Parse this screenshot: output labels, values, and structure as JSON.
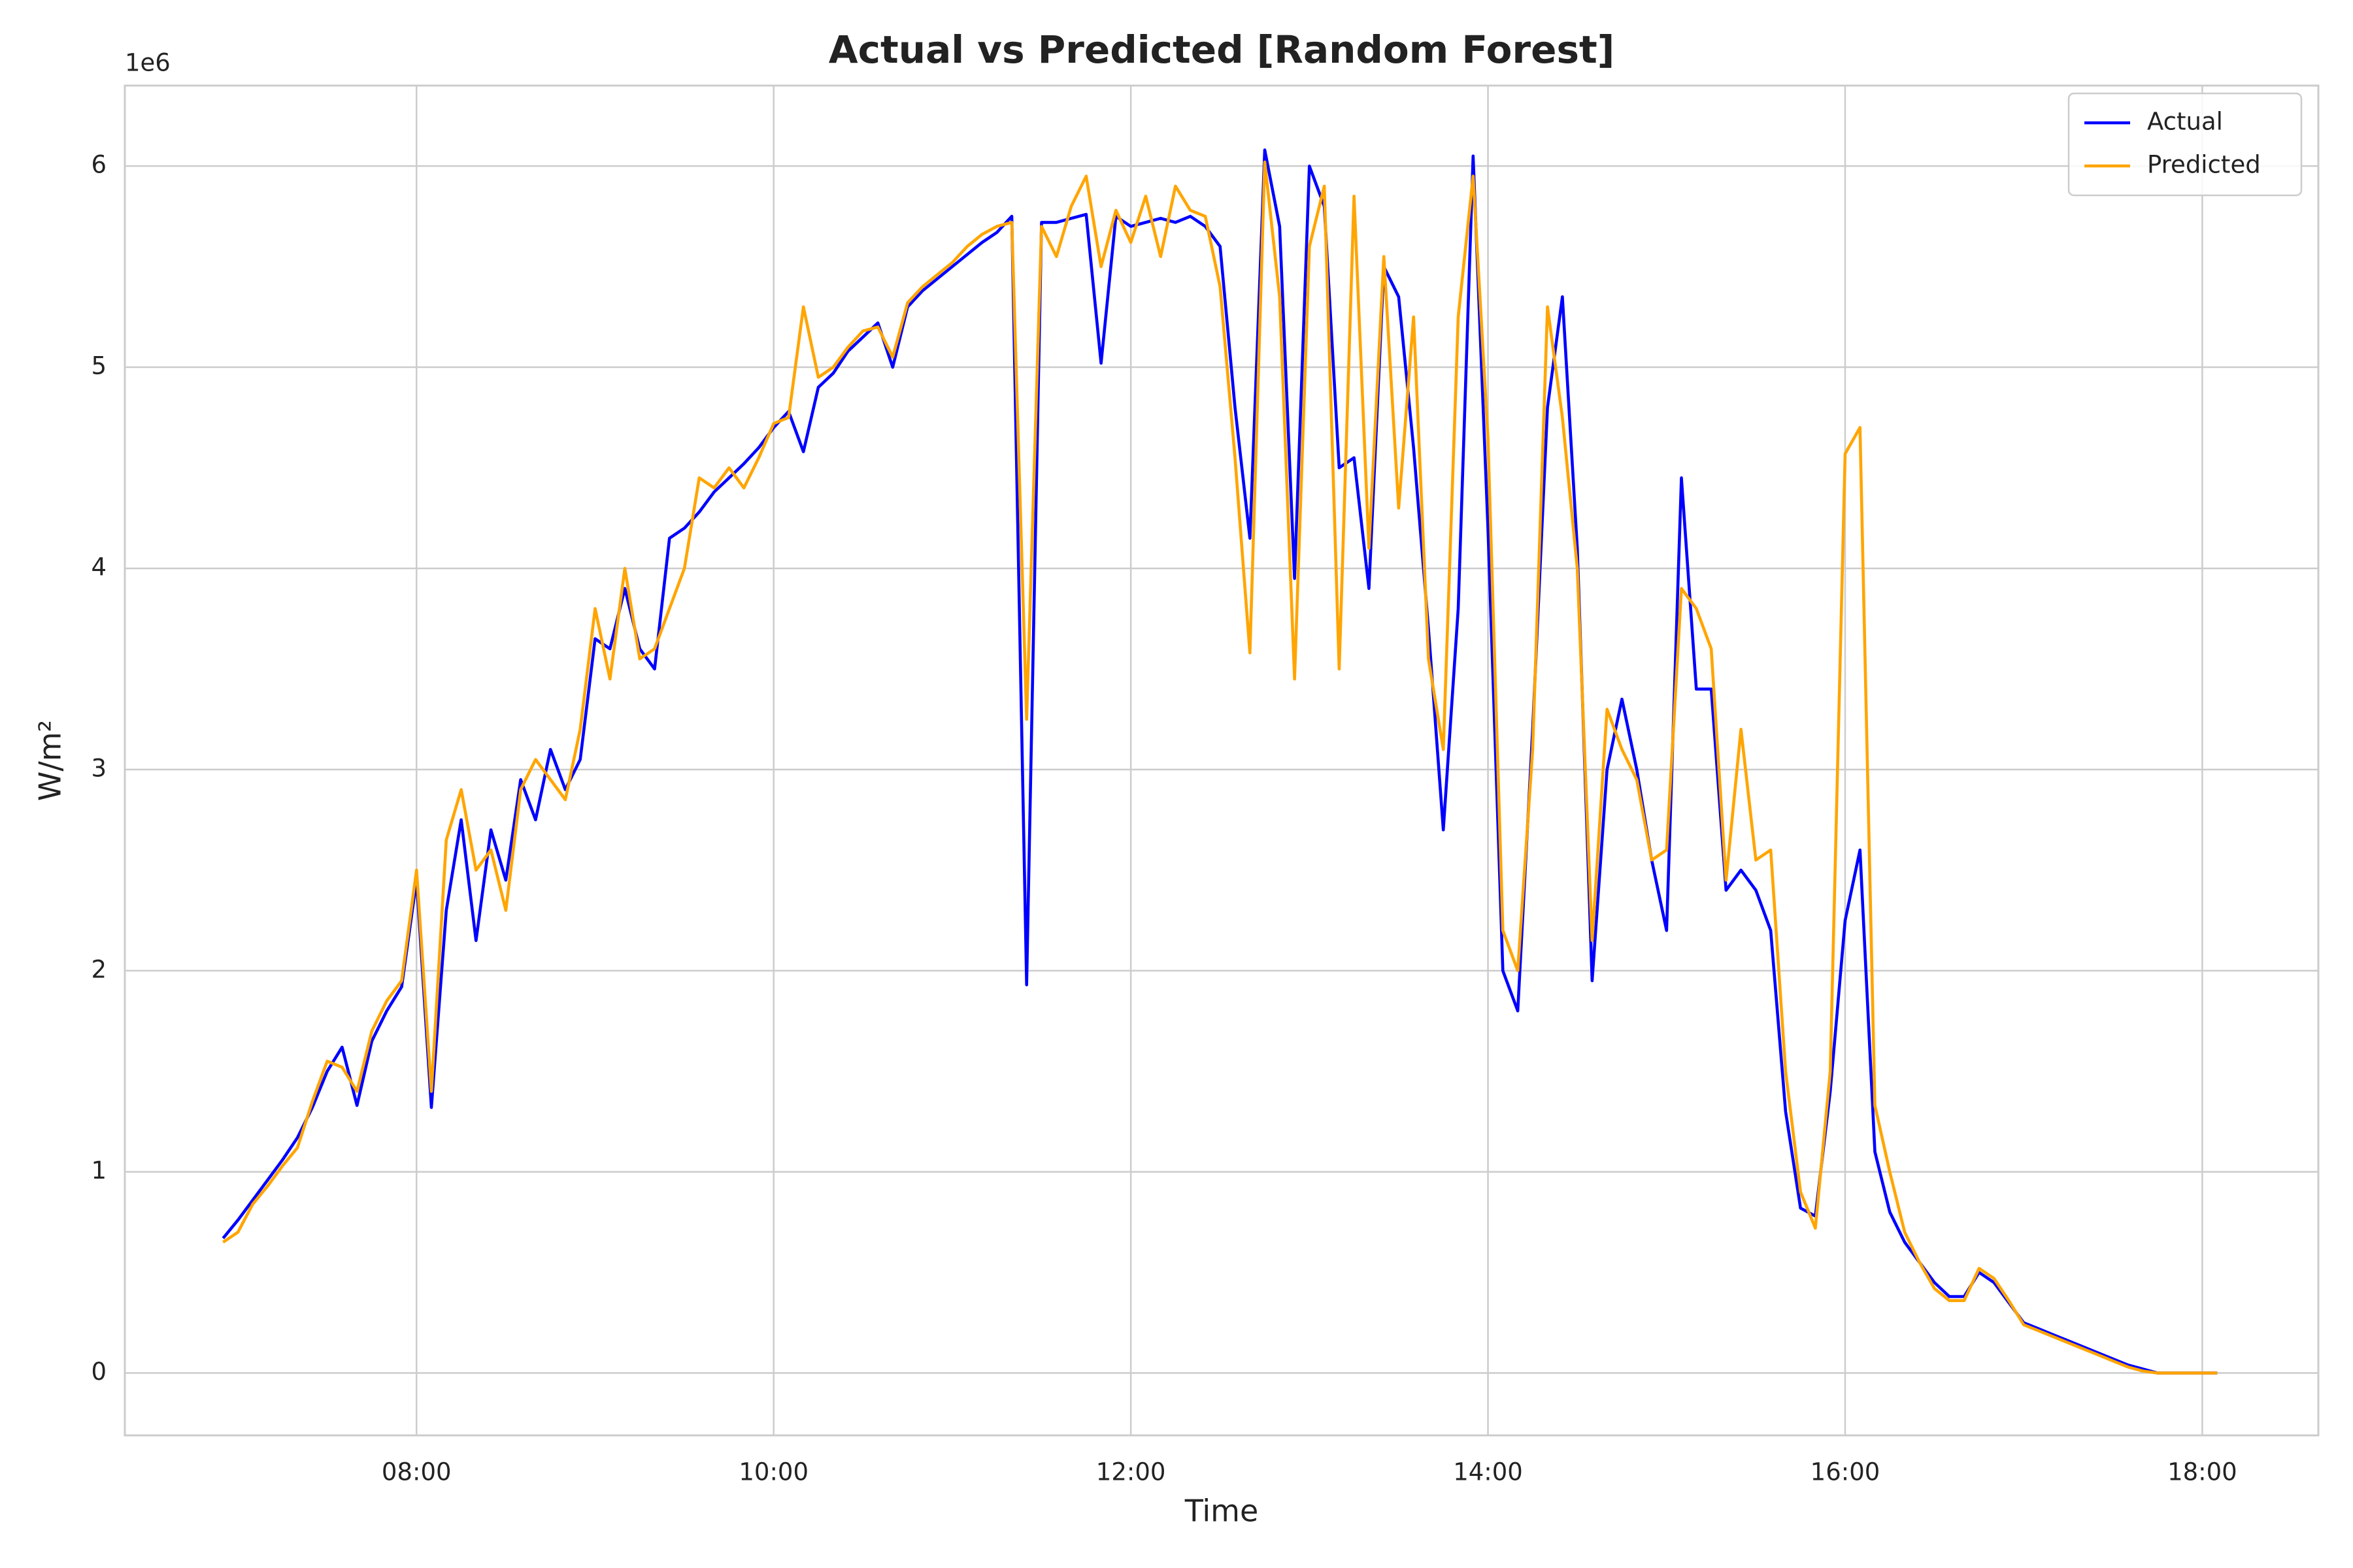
{
  "chart_data": {
    "type": "line",
    "title": "Actual vs Predicted [Random Forest]",
    "xlabel": "Time",
    "ylabel": "W/m²",
    "y_offset_label": "1e6",
    "x": [
      "06:55",
      "07:00",
      "07:05",
      "07:10",
      "07:15",
      "07:20",
      "07:25",
      "07:30",
      "07:35",
      "07:40",
      "07:45",
      "07:50",
      "07:55",
      "08:00",
      "08:05",
      "08:10",
      "08:15",
      "08:20",
      "08:25",
      "08:30",
      "08:35",
      "08:40",
      "08:45",
      "08:50",
      "08:55",
      "09:00",
      "09:05",
      "09:10",
      "09:15",
      "09:20",
      "09:25",
      "09:30",
      "09:35",
      "09:40",
      "09:45",
      "09:50",
      "09:55",
      "10:00",
      "10:05",
      "10:10",
      "10:15",
      "10:20",
      "10:25",
      "10:30",
      "10:35",
      "10:40",
      "10:45",
      "10:50",
      "10:55",
      "11:00",
      "11:05",
      "11:10",
      "11:15",
      "11:20",
      "11:25",
      "11:30",
      "11:35",
      "11:40",
      "11:45",
      "11:50",
      "11:55",
      "12:00",
      "12:05",
      "12:10",
      "12:15",
      "12:20",
      "12:25",
      "12:30",
      "12:35",
      "12:40",
      "12:45",
      "12:50",
      "12:55",
      "13:00",
      "13:05",
      "13:10",
      "13:15",
      "13:20",
      "13:25",
      "13:30",
      "13:35",
      "13:40",
      "13:45",
      "13:50",
      "13:55",
      "14:00",
      "14:05",
      "14:10",
      "14:15",
      "14:20",
      "14:25",
      "14:30",
      "14:35",
      "14:40",
      "14:45",
      "14:50",
      "14:55",
      "15:00",
      "15:05",
      "15:10",
      "15:15",
      "15:20",
      "15:25",
      "15:30",
      "15:35",
      "15:40",
      "15:45",
      "15:50",
      "15:55",
      "16:00",
      "16:05",
      "16:10",
      "16:15",
      "16:20",
      "16:25",
      "16:30",
      "16:35",
      "16:40",
      "16:45",
      "16:50",
      "16:55",
      "17:00",
      "17:05",
      "17:10",
      "17:15",
      "17:20",
      "17:25",
      "17:30",
      "17:35",
      "17:40",
      "17:45",
      "17:50",
      "17:55",
      "18:00",
      "18:05"
    ],
    "series": [
      {
        "name": "Actual",
        "color": "#0000ff",
        "values": [
          0.67,
          0.76,
          0.86,
          0.96,
          1.06,
          1.17,
          1.32,
          1.5,
          1.62,
          1.33,
          1.65,
          1.8,
          1.92,
          2.45,
          1.32,
          2.3,
          2.75,
          2.15,
          2.7,
          2.45,
          2.95,
          2.75,
          3.1,
          2.9,
          3.05,
          3.65,
          3.6,
          3.9,
          3.6,
          3.5,
          4.15,
          4.2,
          4.28,
          4.38,
          4.45,
          4.52,
          4.6,
          4.7,
          4.78,
          4.58,
          4.9,
          4.97,
          5.08,
          5.15,
          5.22,
          5.0,
          5.3,
          5.38,
          5.44,
          5.5,
          5.56,
          5.62,
          5.67,
          5.75,
          1.93,
          5.72,
          5.72,
          5.74,
          5.76,
          5.02,
          5.75,
          5.7,
          5.72,
          5.74,
          5.72,
          5.75,
          5.7,
          5.6,
          4.8,
          4.15,
          6.08,
          5.7,
          3.95,
          6.0,
          5.8,
          4.5,
          4.55,
          3.9,
          5.5,
          5.35,
          4.6,
          3.7,
          2.7,
          3.8,
          6.05,
          4.2,
          2.0,
          1.8,
          3.2,
          4.8,
          5.35,
          4.1,
          1.95,
          3.0,
          3.35,
          3.0,
          2.55,
          2.2,
          4.45,
          3.4,
          3.4,
          2.4,
          2.5,
          2.4,
          2.2,
          1.3,
          0.82,
          0.78,
          1.4,
          2.25,
          2.6,
          1.1,
          0.8,
          0.65,
          0.55,
          0.45,
          0.38,
          0.38,
          0.5,
          0.45,
          0.35,
          0.25,
          0.22,
          0.19,
          0.16,
          0.13,
          0.1,
          0.07,
          0.04,
          0.02,
          0,
          0,
          0,
          0,
          0
        ]
      },
      {
        "name": "Predicted",
        "color": "#ffa500",
        "values": [
          0.65,
          0.7,
          0.84,
          0.93,
          1.03,
          1.12,
          1.35,
          1.55,
          1.52,
          1.4,
          1.7,
          1.85,
          1.95,
          2.5,
          1.4,
          2.65,
          2.9,
          2.5,
          2.6,
          2.3,
          2.9,
          3.05,
          2.95,
          2.85,
          3.2,
          3.8,
          3.45,
          4.0,
          3.55,
          3.6,
          3.8,
          4.0,
          4.45,
          4.4,
          4.5,
          4.4,
          4.55,
          4.72,
          4.75,
          5.3,
          4.95,
          5.0,
          5.1,
          5.18,
          5.2,
          5.05,
          5.32,
          5.4,
          5.46,
          5.52,
          5.6,
          5.66,
          5.7,
          5.72,
          3.25,
          5.7,
          5.55,
          5.8,
          5.95,
          5.5,
          5.78,
          5.62,
          5.85,
          5.55,
          5.9,
          5.78,
          5.75,
          5.4,
          4.55,
          3.58,
          6.02,
          5.35,
          3.45,
          5.6,
          5.9,
          3.5,
          5.85,
          4.1,
          5.55,
          4.3,
          5.25,
          3.55,
          3.1,
          5.25,
          5.95,
          4.65,
          2.2,
          2.0,
          3.1,
          5.3,
          4.75,
          4.0,
          2.15,
          3.3,
          3.1,
          2.95,
          2.55,
          2.6,
          3.9,
          3.8,
          3.6,
          2.45,
          3.2,
          2.55,
          2.6,
          1.5,
          0.9,
          0.72,
          1.5,
          4.57,
          4.7,
          1.33,
          1.0,
          0.7,
          0.55,
          0.42,
          0.36,
          0.36,
          0.52,
          0.47,
          0.36,
          0.24,
          0.21,
          0.18,
          0.15,
          0.12,
          0.09,
          0.06,
          0.03,
          0.01,
          0,
          0,
          0,
          0,
          0
        ]
      }
    ],
    "xlim": [
      "06:22",
      "18:39"
    ],
    "xticks": [
      "08:00",
      "10:00",
      "12:00",
      "14:00",
      "16:00",
      "18:00"
    ],
    "ylim": [
      -0.31,
      6.4
    ],
    "yticks": [
      0,
      1,
      2,
      3,
      4,
      5,
      6
    ],
    "grid": true,
    "legend": "upper right"
  }
}
